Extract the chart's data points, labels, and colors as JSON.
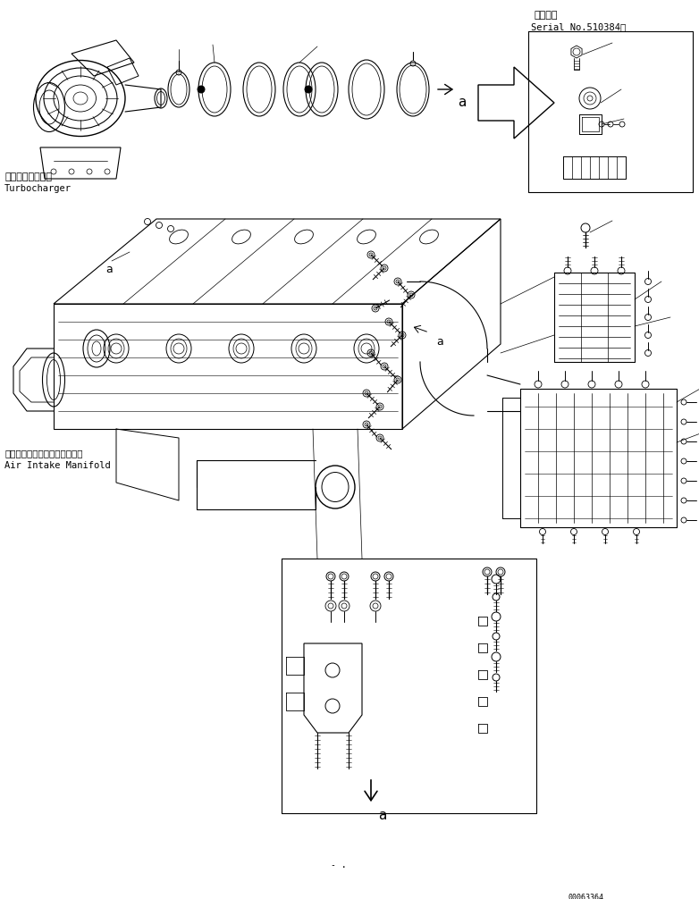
{
  "bg_color": "#ffffff",
  "line_color": "#000000",
  "fig_width": 7.82,
  "fig_height": 10.06,
  "dpi": 100,
  "serial_text_1": "適用号機",
  "serial_text_2": "Serial No.510384～",
  "bottom_code": "00063364",
  "label_turbo_jp": "ターボチャージャ",
  "label_turbo_en": "Turbocharger",
  "label_manifold_jp": "エアーインテークマニホールド",
  "label_manifold_en": "Air Intake Manifold"
}
